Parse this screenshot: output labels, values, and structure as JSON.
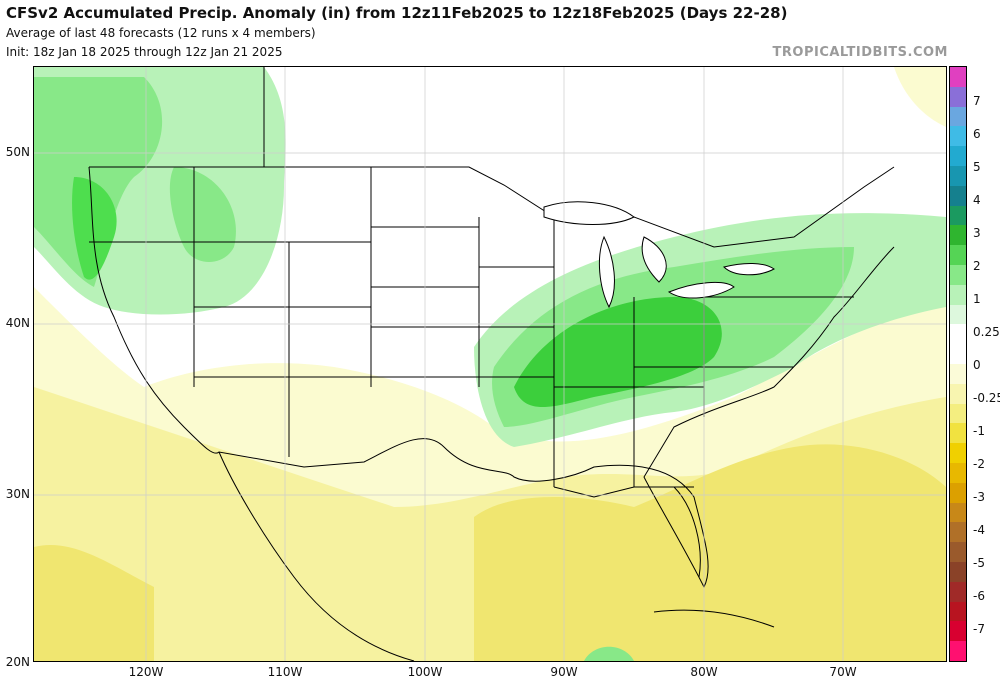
{
  "header": {
    "title": "CFSv2 Accumulated Precip. Anomaly (in) from 12z11Feb2025 to 12z18Feb2025 (Days 22-28)",
    "subtitle1": "Average of last 48 forecasts (12 runs x 4 members)",
    "subtitle2": "Init: 18z Jan 18 2025 through 12z Jan 21 2025",
    "brand": "TROPICALTIDBITS.COM"
  },
  "axes": {
    "lat_labels": [
      "50N",
      "40N",
      "30N",
      "20N"
    ],
    "lon_labels": [
      "120W",
      "110W",
      "100W",
      "90W",
      "80W",
      "70W"
    ]
  },
  "colorbar": {
    "labels": [
      "7",
      "6",
      "5",
      "4",
      "3",
      "2",
      "1",
      "0.25",
      "0",
      "-0.25",
      "-1",
      "-2",
      "-3",
      "-4",
      "-5",
      "-6",
      "-7"
    ],
    "colors": [
      "#e040c0",
      "#8a6fd8",
      "#6aa7e0",
      "#3fbbe6",
      "#22aad0",
      "#1896b0",
      "#15808e",
      "#1b9a60",
      "#2fb52f",
      "#55d455",
      "#88e888",
      "#b8f2b8",
      "#ddf8dd",
      "#ffffff",
      "#ffffff",
      "#fbfbd8",
      "#f8f5b0",
      "#f4ee80",
      "#f1e240",
      "#f0d000",
      "#e8b800",
      "#dca000",
      "#c88818",
      "#b07028",
      "#9a5a2c",
      "#8a4228",
      "#a02a28",
      "#b81420",
      "#d80030",
      "#ff1070"
    ]
  },
  "map_colors": {
    "ocean": "#ffffff",
    "land": "#ffffff",
    "green_light": "#b8f2b8",
    "green_mid": "#88e888",
    "green_dark": "#4ede4e",
    "green_deep": "#3ccf3c",
    "yellow_light": "#fbfbd0",
    "yellow_mid": "#f6f2a0",
    "yellow_dark": "#f0e670",
    "yellow_deep": "#ebd84a",
    "border": "#000000",
    "grid": "#cccccc"
  }
}
